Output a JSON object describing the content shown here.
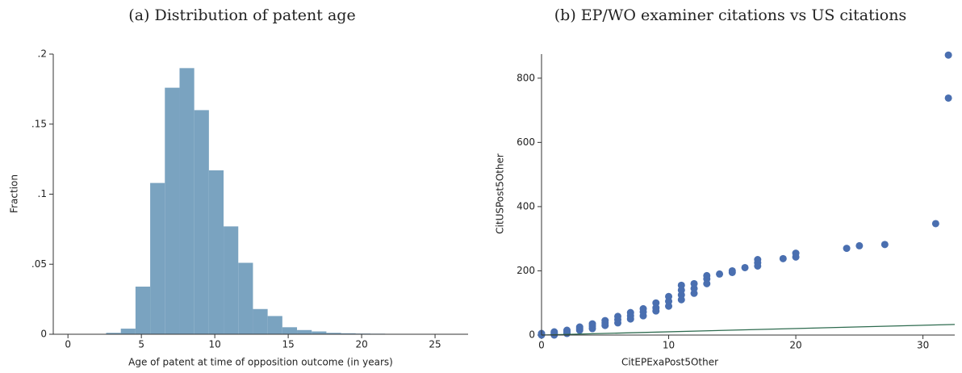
{
  "chart_data": [
    {
      "type": "histogram",
      "title": "(a) Distribution of patent age",
      "x_label": "Age of patent at time of opposition outcome (in years)",
      "y_label": "Fraction",
      "bins": [
        2.6,
        3.6,
        4.6,
        5.6,
        6.6,
        7.6,
        8.6,
        9.6,
        10.6,
        11.6,
        12.6,
        13.6,
        14.6,
        15.6,
        16.6,
        17.6,
        18.6,
        19.6,
        20.6,
        21.6,
        22.6,
        23.6,
        24.6,
        25.6,
        26.6
      ],
      "values": [
        0.001,
        0.004,
        0.034,
        0.108,
        0.176,
        0.19,
        0.16,
        0.117,
        0.077,
        0.051,
        0.018,
        0.013,
        0.005,
        0.003,
        0.002,
        0.001,
        0.0007,
        0.0005,
        0.0004,
        0.0003,
        0.0002,
        0.0002,
        0.0001,
        0.0001
      ],
      "color": "#7aa3c0",
      "xlim": [
        -1,
        27.25
      ],
      "ylim": [
        0,
        0.2
      ],
      "xticks": [
        0,
        5,
        10,
        15,
        20,
        25
      ],
      "yticks": [
        0,
        {
          "value": 0.05,
          "label": ".05"
        },
        {
          "value": 0.1,
          "label": ".1"
        },
        {
          "value": 0.15,
          "label": ".15"
        },
        {
          "value": 0.2,
          "label": ".2"
        }
      ]
    },
    {
      "type": "scatter",
      "title": "(b) EP/WO examiner citations vs US citations",
      "x_label": "CitEPExaPost5Other",
      "y_label": "CitUSPost5Other",
      "x": [
        0,
        0,
        1,
        1,
        1,
        1,
        2,
        2,
        2,
        3,
        3,
        3,
        4,
        4,
        4,
        5,
        5,
        5,
        6,
        6,
        6,
        7,
        7,
        7,
        8,
        8,
        8,
        9,
        9,
        9,
        10,
        10,
        10,
        11,
        11,
        11,
        11,
        12,
        12,
        12,
        13,
        13,
        13,
        14,
        15,
        15,
        16,
        17,
        17,
        17,
        19,
        20,
        20,
        24,
        25,
        27,
        31,
        32,
        32
      ],
      "series": [
        {
          "color": "#4a6fb0",
          "values": [
            0,
            5,
            0,
            3,
            6,
            10,
            5,
            10,
            15,
            15,
            20,
            25,
            20,
            28,
            35,
            30,
            38,
            45,
            38,
            48,
            58,
            50,
            60,
            70,
            60,
            72,
            82,
            75,
            85,
            100,
            90,
            105,
            120,
            110,
            125,
            140,
            155,
            130,
            145,
            160,
            160,
            175,
            185,
            190,
            195,
            200,
            210,
            215,
            225,
            235,
            238,
            243,
            255,
            270,
            278,
            282,
            347,
            738,
            872
          ]
        }
      ],
      "line": {
        "x": [
          0,
          32.5
        ],
        "values": [
          0,
          33
        ],
        "color": "#2e6b4f"
      },
      "xlim": [
        0,
        32.5
      ],
      "ylim": [
        0,
        875
      ],
      "xticks": [
        0,
        10,
        20,
        30
      ],
      "yticks": [
        0,
        200,
        400,
        600,
        800
      ]
    }
  ]
}
